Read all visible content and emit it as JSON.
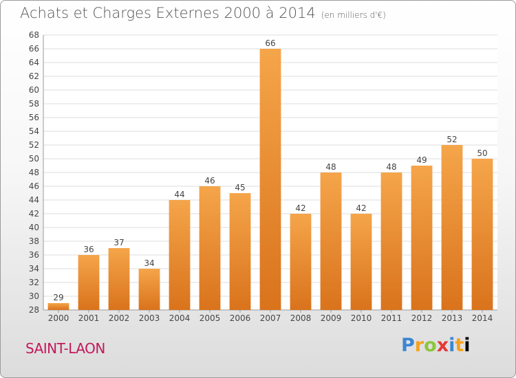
{
  "page": {
    "title": "Achats et Charges Externes 2000 à 2014",
    "title_unit": "(en milliers d'€)",
    "commune": "SAINT-LAON",
    "logo_letters": [
      "P",
      "r",
      "o",
      "x",
      "i",
      "t",
      "i"
    ]
  },
  "colors": {
    "bar_top": "#f5a54a",
    "bar_bottom": "#d9731c",
    "grid": "#dddddd",
    "axis_text": "#444444",
    "title_text": "#555555",
    "commune_text": "#c2185b"
  },
  "chart_data": {
    "type": "bar",
    "title": "Achats et Charges Externes 2000 à 2014",
    "subtitle": "(en milliers d'€)",
    "xlabel": "",
    "ylabel": "",
    "categories": [
      "2000",
      "2001",
      "2002",
      "2003",
      "2004",
      "2005",
      "2006",
      "2007",
      "2008",
      "2009",
      "2010",
      "2011",
      "2012",
      "2013",
      "2014"
    ],
    "values": [
      29,
      36,
      37,
      34,
      44,
      46,
      45,
      66,
      42,
      48,
      42,
      48,
      49,
      52,
      50
    ],
    "ylim": [
      28,
      68
    ],
    "yticks": [
      28,
      30,
      32,
      34,
      36,
      38,
      40,
      42,
      44,
      46,
      48,
      50,
      52,
      54,
      56,
      58,
      60,
      62,
      64,
      66,
      68
    ],
    "grid": true,
    "legend": "none",
    "data_labels": true
  }
}
